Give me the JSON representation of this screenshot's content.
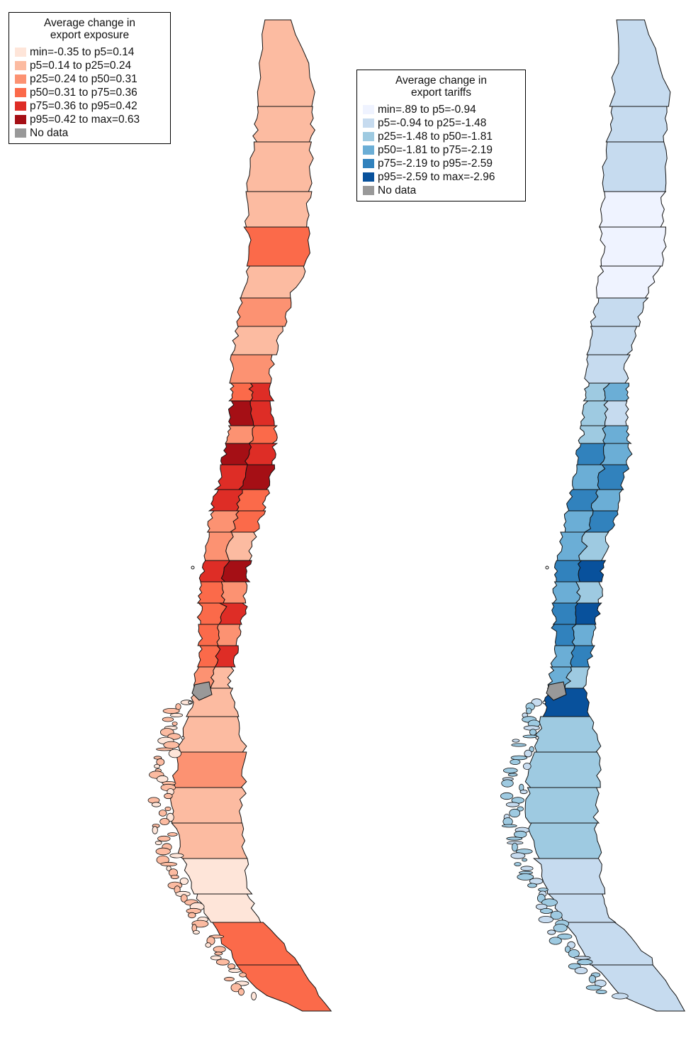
{
  "maps": [
    {
      "id": "exposure",
      "legend_title_line1": "Average change in",
      "legend_title_line2": "export exposure",
      "classes": [
        {
          "label": "min=-0.35 to p5=0.14",
          "color": "#fee5d9"
        },
        {
          "label": "p5=0.14 to p25=0.24",
          "color": "#fcbba1"
        },
        {
          "label": "p25=0.24 to p50=0.31",
          "color": "#fc9272"
        },
        {
          "label": "p50=0.31 to p75=0.36",
          "color": "#fb6a4a"
        },
        {
          "label": "p75=0.36 to p95=0.42",
          "color": "#de2d26"
        },
        {
          "label": "p95=0.42 to max=0.63",
          "color": "#a50f15"
        },
        {
          "label": "No data",
          "color": "#999999"
        }
      ]
    },
    {
      "id": "tariffs",
      "legend_title_line1": "Average change in",
      "legend_title_line2": "export tariffs",
      "classes": [
        {
          "label": "min=.89 to p5=-0.94",
          "color": "#eff3ff"
        },
        {
          "label": "p5=-0.94 to p25=-1.48",
          "color": "#c6dbef"
        },
        {
          "label": "p25=-1.48 to p50=-1.81",
          "color": "#9ecae1"
        },
        {
          "label": "p50=-1.81 to p75=-2.19",
          "color": "#6baed6"
        },
        {
          "label": "p75=-2.19 to p95=-2.59",
          "color": "#3182bd"
        },
        {
          "label": "p95=-2.59 to max=-2.96",
          "color": "#08519c"
        },
        {
          "label": "No data",
          "color": "#999999"
        }
      ]
    }
  ]
}
